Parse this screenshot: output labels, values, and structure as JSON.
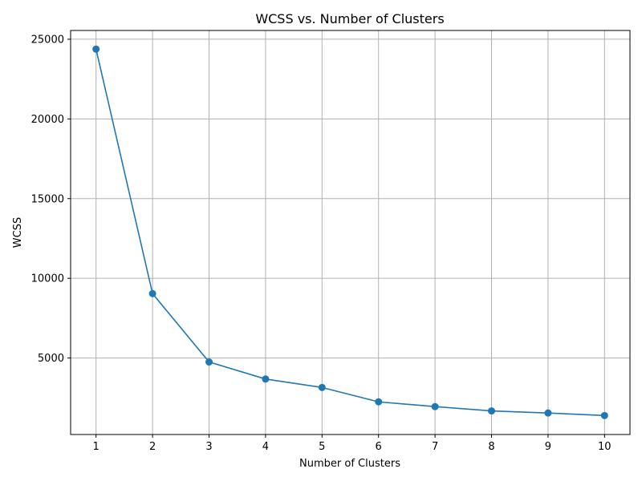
{
  "chart_data": {
    "type": "line",
    "title": "WCSS vs. Number of Clusters",
    "xlabel": "Number of Clusters",
    "ylabel": "WCSS",
    "x": [
      1,
      2,
      3,
      4,
      5,
      6,
      7,
      8,
      9,
      10
    ],
    "series": [
      {
        "values": [
          24380,
          9040,
          4750,
          3680,
          3150,
          2250,
          1950,
          1680,
          1550,
          1390
        ],
        "color": "#1f77b4",
        "marker": "circle"
      }
    ],
    "xticks": [
      "1",
      "2",
      "3",
      "4",
      "5",
      "6",
      "7",
      "8",
      "9",
      "10"
    ],
    "yticks": [
      "5000",
      "10000",
      "15000",
      "20000",
      "25000"
    ],
    "xlim": [
      0.55,
      10.45
    ],
    "ylim": [
      200,
      25550
    ],
    "grid": true,
    "legend": "none"
  }
}
